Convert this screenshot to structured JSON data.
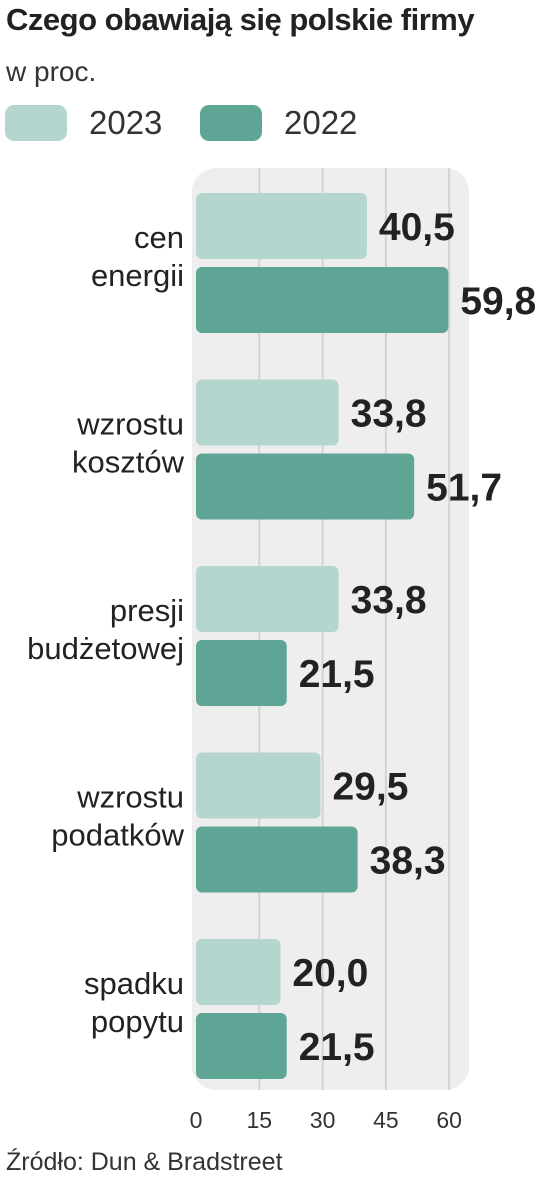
{
  "title": "Czego obawiają się polskie firmy",
  "subtitle": "w proc.",
  "source": "Źródło: Dun & Bradstreet",
  "colors": {
    "2023": "#b5d6cf",
    "2022": "#5fa596",
    "panel": "#eeeeee",
    "grid": "#d3d3d3"
  },
  "chart_data": {
    "type": "bar",
    "orientation": "horizontal",
    "title": "Czego obawiają się polskie firmy",
    "subtitle": "w proc.",
    "categories": [
      [
        "cen",
        "energii"
      ],
      [
        "wzrostu",
        "kosztów"
      ],
      [
        "presji",
        "budżetowej"
      ],
      [
        "wzrostu",
        "podatków"
      ],
      [
        "spadku",
        "popytu"
      ]
    ],
    "series": [
      {
        "name": "2023",
        "values": [
          40.5,
          33.8,
          33.8,
          29.5,
          20.0
        ],
        "labels": [
          "40,5",
          "33,8",
          "33,8",
          "29,5",
          "20,0"
        ]
      },
      {
        "name": "2022",
        "values": [
          59.8,
          51.7,
          21.5,
          38.3,
          21.5
        ],
        "labels": [
          "59,8",
          "51,7",
          "21,5",
          "38,3",
          "21,5"
        ]
      }
    ],
    "xlim": [
      0,
      60
    ],
    "xticks": [
      0,
      15,
      30,
      45,
      60
    ],
    "grid": true,
    "legend": "top"
  }
}
